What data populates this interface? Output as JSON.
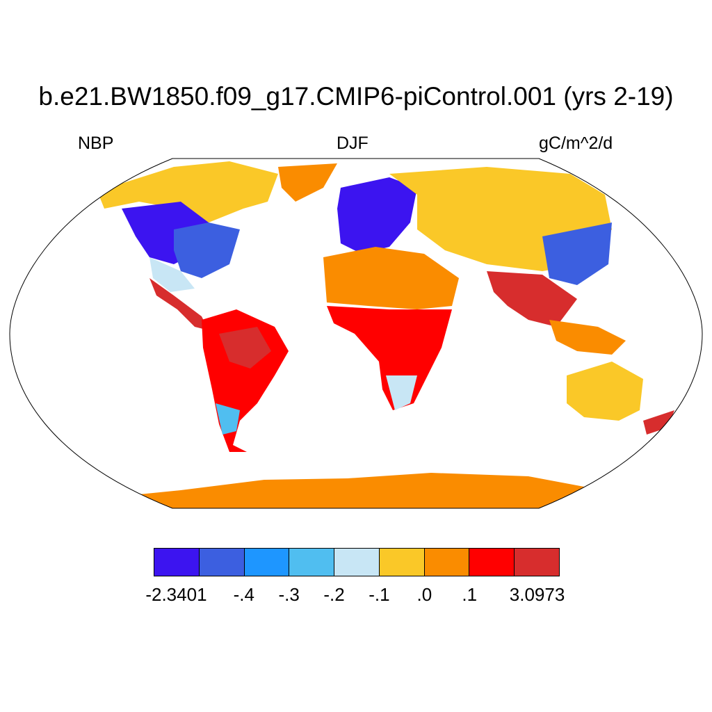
{
  "title": "b.e21.BW1850.f09_g17.CMIP6-piControl.001 (yrs 2-19)",
  "left_label": "NBP",
  "center_label": "DJF",
  "right_label": "gC/m^2/d",
  "projection": "Robinson",
  "colorbar": {
    "colors": [
      "#3c14f0",
      "#3c5fe0",
      "#1e96ff",
      "#50bef0",
      "#c8e6f5",
      "#fac828",
      "#fa8c00",
      "#ff0000",
      "#d72d2d"
    ],
    "labels": [
      "-2.3401",
      "-.4",
      "-.3",
      "-.2",
      "-.1",
      ".0",
      ".1",
      "3.0973"
    ]
  }
}
